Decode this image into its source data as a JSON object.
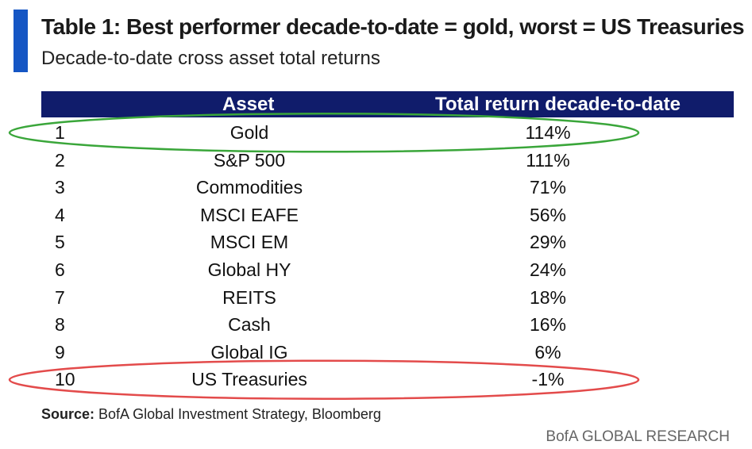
{
  "title": "Table 1: Best performer decade-to-date = gold, worst = US Treasuries",
  "subtitle": "Decade-to-date cross asset total returns",
  "header": {
    "asset": "Asset",
    "return": "Total return decade-to-date"
  },
  "chart_data": {
    "type": "table",
    "columns": [
      "",
      "Asset",
      "Total return decade-to-date"
    ],
    "rows": [
      {
        "rank": "1",
        "asset": "Gold",
        "return": "114%",
        "value": 114
      },
      {
        "rank": "2",
        "asset": "S&P 500",
        "return": "111%",
        "value": 111
      },
      {
        "rank": "3",
        "asset": "Commodities",
        "return": "71%",
        "value": 71
      },
      {
        "rank": "4",
        "asset": "MSCI EAFE",
        "return": "56%",
        "value": 56
      },
      {
        "rank": "5",
        "asset": "MSCI EM",
        "return": "29%",
        "value": 29
      },
      {
        "rank": "6",
        "asset": "Global HY",
        "return": "24%",
        "value": 24
      },
      {
        "rank": "7",
        "asset": "REITS",
        "return": "18%",
        "value": 18
      },
      {
        "rank": "8",
        "asset": "Cash",
        "return": "16%",
        "value": 16
      },
      {
        "rank": "9",
        "asset": "Global IG",
        "return": "6%",
        "value": 6
      },
      {
        "rank": "10",
        "asset": "US Treasuries",
        "return": "-1%",
        "value": -1
      }
    ],
    "highlights": [
      {
        "rank": "1",
        "color": "#3aa63a"
      },
      {
        "rank": "10",
        "color": "#e34b4b"
      }
    ]
  },
  "source": {
    "label": "Source:",
    "text": " BofA Global Investment Strategy, Bloomberg"
  },
  "brand": "BofA GLOBAL RESEARCH",
  "colors": {
    "accent": "#1556c4",
    "header_bg": "#101c6b",
    "header_text": "#ffffff"
  }
}
